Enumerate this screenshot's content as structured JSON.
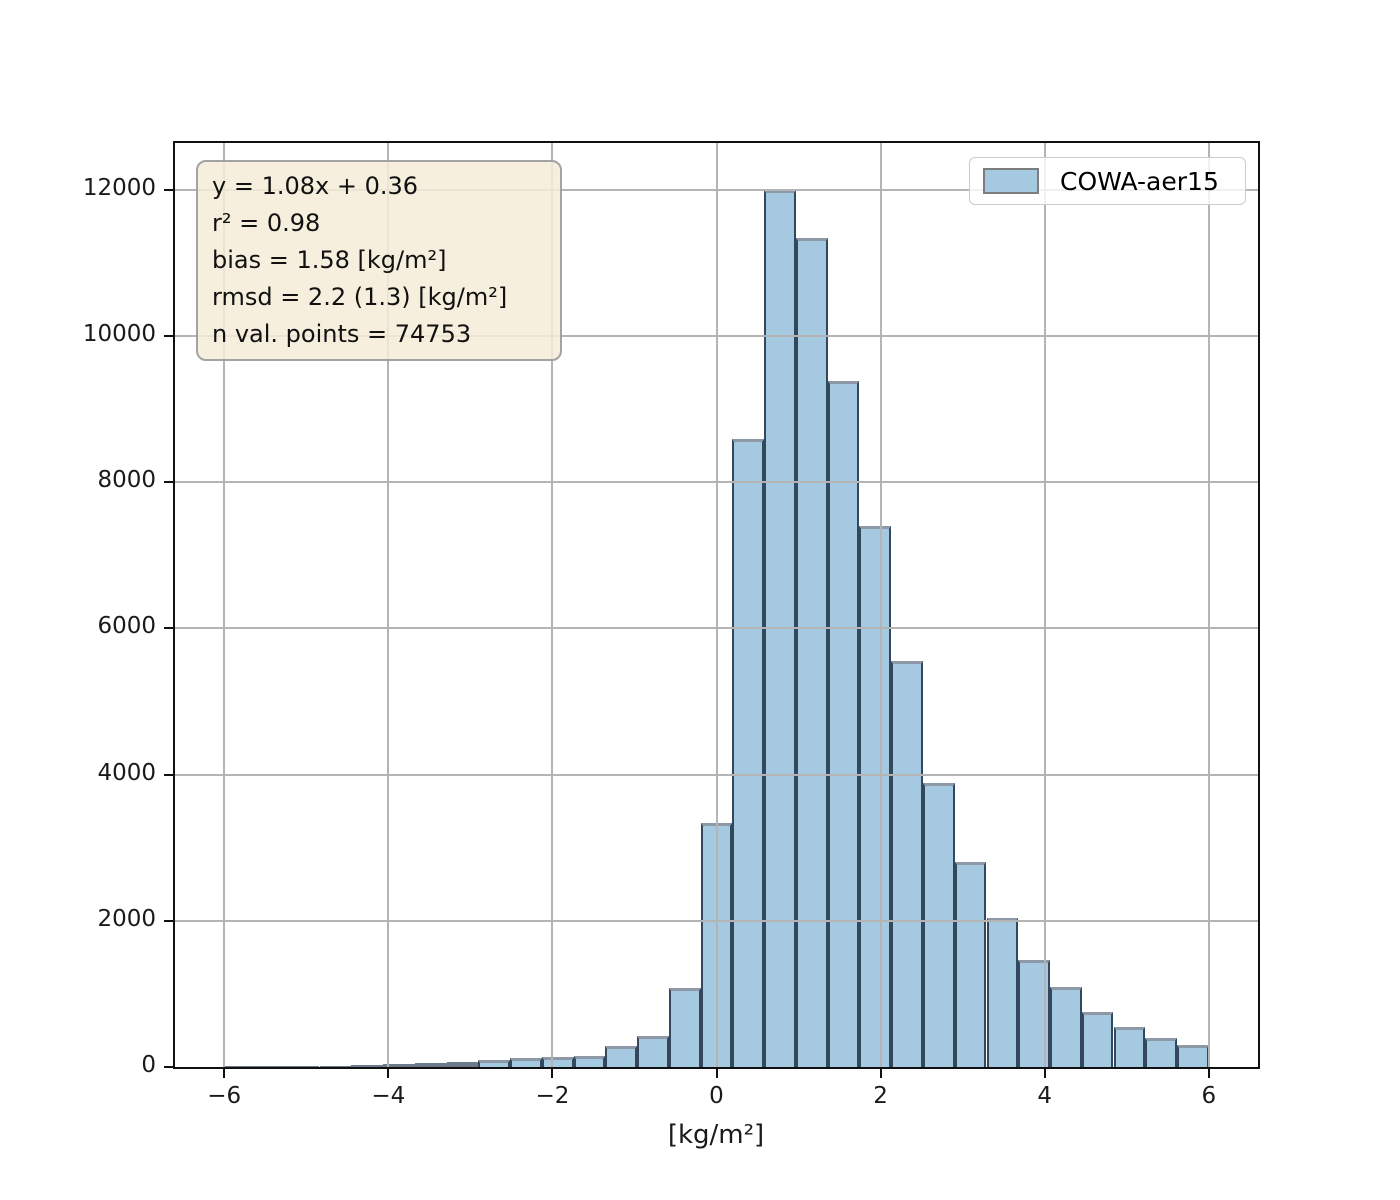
{
  "figure": {
    "background": "#ffffff"
  },
  "chart_data": {
    "type": "bar",
    "subtype": "histogram",
    "title": "",
    "xlabel": "[kg/m²]",
    "ylabel": "",
    "legend": [
      "COWA-aer15"
    ],
    "legend_position": "upper right",
    "grid": true,
    "grid_color": "#b4b4b4",
    "xlim": [
      -6.6,
      6.6
    ],
    "ylim": [
      0,
      12640
    ],
    "xticks": [
      -6,
      -4,
      -2,
      0,
      2,
      4,
      6
    ],
    "xtick_labels": [
      "−6",
      "−4",
      "−2",
      "0",
      "2",
      "4",
      "6"
    ],
    "yticks": [
      0,
      2000,
      4000,
      6000,
      8000,
      10000,
      12000
    ],
    "ytick_labels": [
      "0",
      "2000",
      "4000",
      "6000",
      "8000",
      "10000",
      "12000"
    ],
    "bin_start": -6.0,
    "bin_width": 0.3871,
    "bin_count": 31,
    "values": [
      5,
      8,
      10,
      15,
      25,
      40,
      55,
      70,
      100,
      120,
      140,
      155,
      290,
      430,
      1080,
      3340,
      8590,
      12000,
      11340,
      9390,
      7400,
      5550,
      3890,
      2800,
      2040,
      1470,
      1090,
      750,
      550,
      400,
      300
    ],
    "bar_fill": "#a6c9e2",
    "bar_edge": "#33485d",
    "bar_top_edge": "#8d99a6",
    "annotations": [
      "y = 1.08x + 0.36",
      "r² = 0.98",
      "bias = 1.58 [kg/m²]",
      "rmsd = 2.2 (1.3) [kg/m²]",
      "n val. points = 74753"
    ],
    "annotation_box_fill": "#f5ecd8",
    "annotation_box_edge": "#a3a3a3"
  }
}
